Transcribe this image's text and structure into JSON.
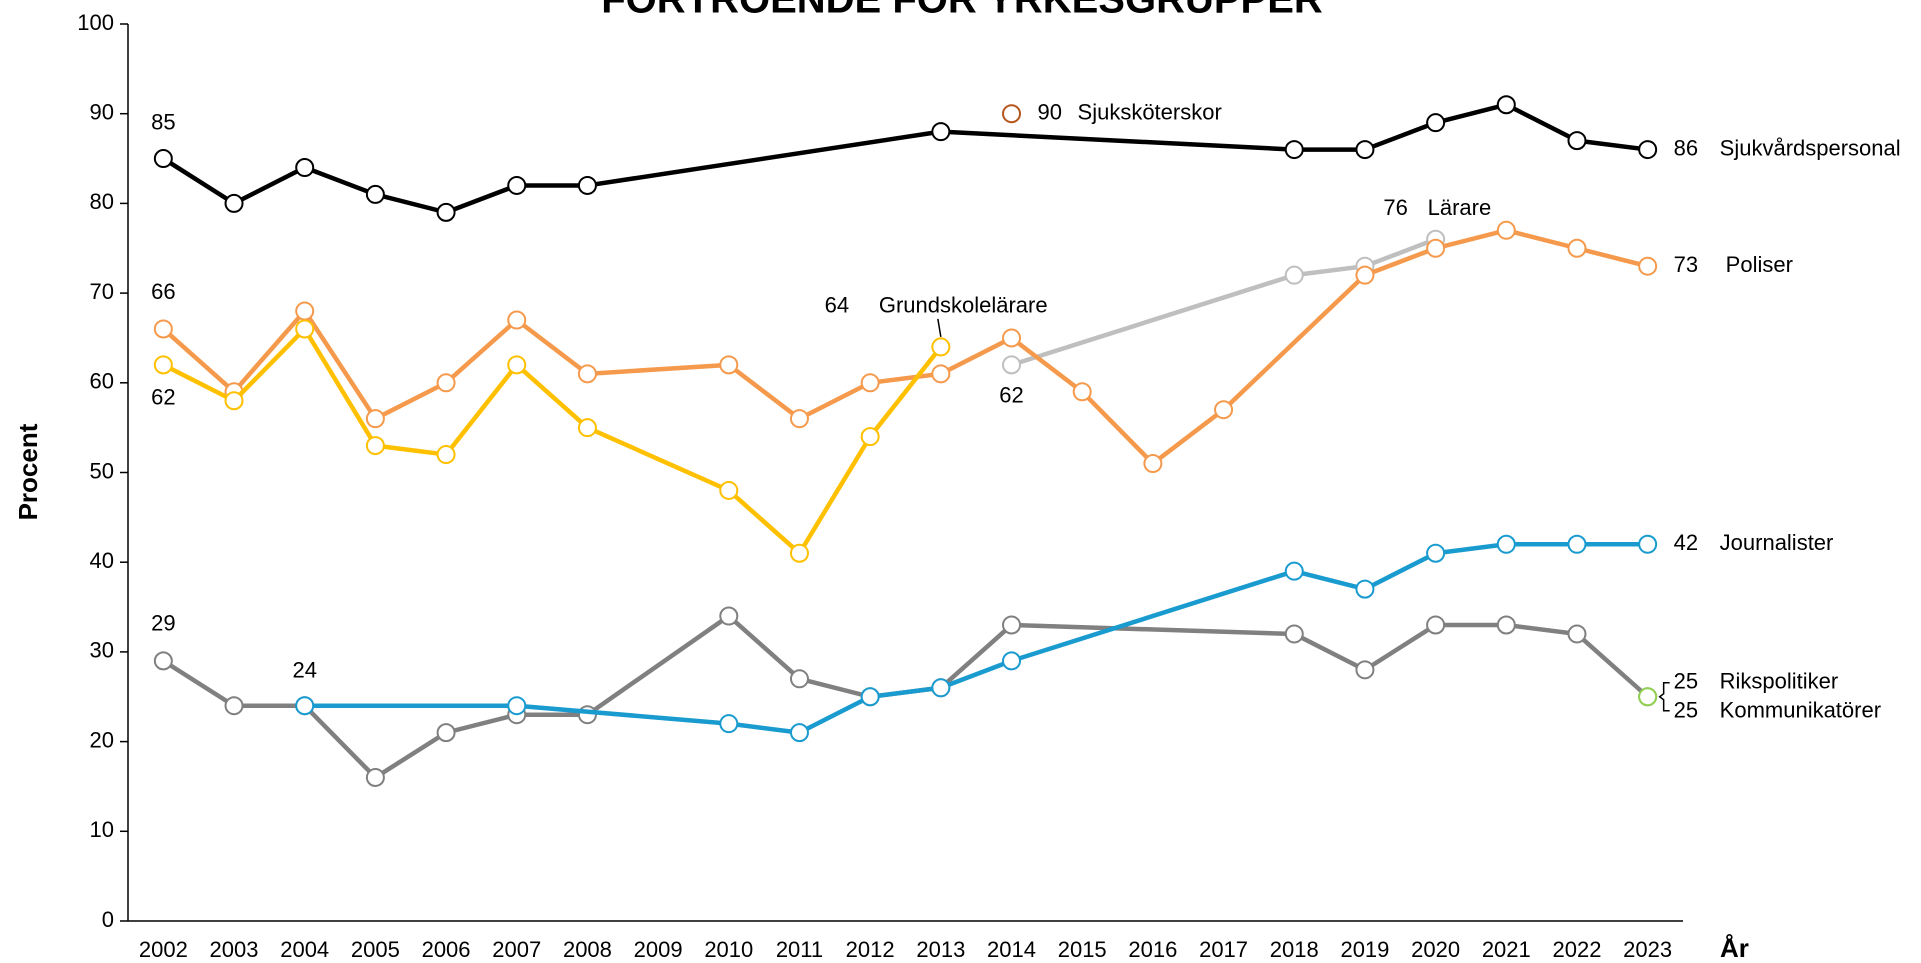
{
  "chart_data": {
    "type": "line",
    "title": "FÖRTROENDE FÖR YRKESGRUPPER",
    "y_label": "Procent",
    "x_label": "År",
    "xlim": [
      2001.5,
      2023.5
    ],
    "xticks": [
      2002,
      2003,
      2004,
      2005,
      2006,
      2007,
      2008,
      2009,
      2010,
      2011,
      2012,
      2013,
      2014,
      2015,
      2016,
      2017,
      2018,
      2019,
      2020,
      2021,
      2022,
      2023
    ],
    "ylim": [
      0,
      100
    ],
    "yticks": [
      0,
      10,
      20,
      30,
      40,
      50,
      60,
      70,
      80,
      90,
      100
    ],
    "series": [
      {
        "name": "Rikspolitiker",
        "color": "#808080",
        "x": [
          2002,
          2003,
          2004,
          2005,
          2006,
          2007,
          2008,
          2010,
          2011,
          2012,
          2013,
          2014,
          2018,
          2019,
          2020,
          2021,
          2022,
          2023
        ],
        "values": [
          29,
          24,
          24,
          16,
          21,
          23,
          23,
          34,
          27,
          25,
          26,
          33,
          32,
          28,
          33,
          33,
          32,
          25
        ]
      },
      {
        "name": "Kommunikatörer",
        "color": "#92d050",
        "x": [
          2023
        ],
        "values": [
          25
        ]
      },
      {
        "name": "Lärare",
        "color": "#bfbfbf",
        "x": [
          2014,
          2018,
          2019,
          2020
        ],
        "values": [
          62,
          72,
          73,
          76
        ]
      },
      {
        "name": "Poliser",
        "color": "#f59a4c",
        "x": [
          2002,
          2003,
          2004,
          2005,
          2006,
          2007,
          2008,
          2010,
          2011,
          2012,
          2013,
          2014,
          2015,
          2016,
          2017,
          2019,
          2020,
          2021,
          2022,
          2023
        ],
        "values": [
          66,
          59,
          68,
          56,
          60,
          67,
          61,
          62,
          56,
          60,
          61,
          65,
          59,
          51,
          57,
          72,
          75,
          77,
          75,
          73
        ]
      },
      {
        "name": "Grundskolelärare",
        "color": "#ffc000",
        "x": [
          2002,
          2003,
          2004,
          2005,
          2006,
          2007,
          2008,
          2010,
          2011,
          2012,
          2013
        ],
        "values": [
          62,
          58,
          66,
          53,
          52,
          62,
          55,
          48,
          41,
          54,
          64
        ]
      },
      {
        "name": "Journalister",
        "color": "#1a9bcf",
        "x": [
          2004,
          2007,
          2010,
          2011,
          2012,
          2013,
          2014,
          2018,
          2019,
          2020,
          2021,
          2022,
          2023
        ],
        "values": [
          24,
          24,
          22,
          21,
          25,
          26,
          29,
          39,
          37,
          41,
          42,
          42,
          42
        ]
      },
      {
        "name": "Sjukvårdspersonal",
        "color": "#000000",
        "x": [
          2002,
          2003,
          2004,
          2005,
          2006,
          2007,
          2008,
          2013,
          2018,
          2019,
          2020,
          2021,
          2022,
          2023
        ],
        "values": [
          85,
          80,
          84,
          81,
          79,
          82,
          82,
          88,
          86,
          86,
          89,
          91,
          87,
          86
        ]
      },
      {
        "name": "Sjuksköterskor",
        "color": "#b5561d",
        "x": [
          2014
        ],
        "values": [
          90
        ]
      }
    ]
  }
}
